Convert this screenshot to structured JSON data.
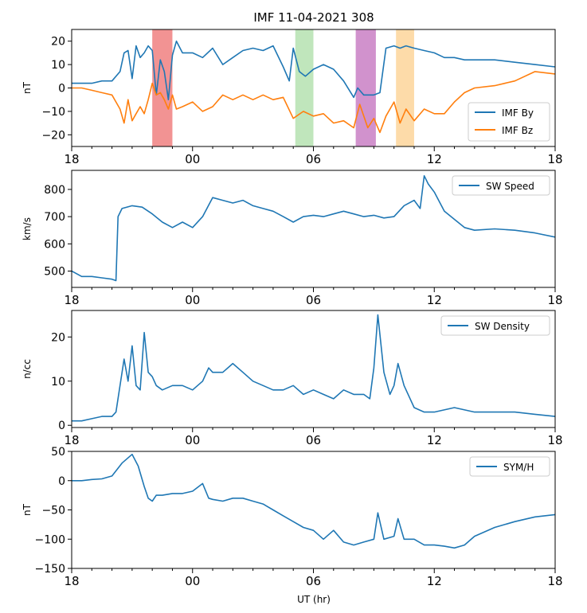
{
  "figure": {
    "title": "IMF  11-04-2021 308",
    "xlabel": "UT (hr)"
  },
  "colors": {
    "by": "#1f77b4",
    "bz": "#ff7f0e",
    "frame": "#000000"
  },
  "chart_data": [
    {
      "type": "line",
      "panel": "imf",
      "title": "IMF  11-04-2021 308",
      "ylabel": "nT",
      "xlim": [
        0,
        24
      ],
      "ylim": [
        -25,
        25
      ],
      "xticks": [
        0,
        6,
        12,
        18,
        24
      ],
      "xticklabels": [
        "18",
        "00",
        "06",
        "12",
        "18"
      ],
      "yticks": [
        -20,
        -10,
        0,
        10,
        20
      ],
      "yticklabels": [
        "−20",
        "−10",
        "0",
        "10",
        "20"
      ],
      "legend_position": "lower-right",
      "shaded_regions": [
        {
          "x0": 4.0,
          "x1": 5.0,
          "color": "#f08080"
        },
        {
          "x0": 11.1,
          "x1": 12.0,
          "color": "#b5e2b0"
        },
        {
          "x0": 14.1,
          "x1": 15.1,
          "color": "#c97fc4"
        },
        {
          "x0": 16.1,
          "x1": 17.0,
          "color": "#fdd59a"
        }
      ],
      "series": [
        {
          "name": "IMF By",
          "color": "#1f77b4",
          "x": [
            0,
            0.5,
            1,
            1.5,
            2,
            2.4,
            2.6,
            2.8,
            3,
            3.2,
            3.4,
            3.6,
            3.8,
            4,
            4.2,
            4.4,
            4.6,
            4.8,
            5,
            5.2,
            5.5,
            6,
            6.5,
            7,
            7.5,
            8,
            8.5,
            9,
            9.5,
            10,
            10.5,
            10.8,
            11,
            11.3,
            11.6,
            12,
            12.5,
            13,
            13.5,
            14,
            14.2,
            14.5,
            15,
            15.3,
            15.6,
            16,
            16.3,
            16.6,
            17,
            17.5,
            18,
            18.5,
            19,
            19.5,
            20,
            21,
            22,
            23,
            24
          ],
          "y": [
            2,
            2,
            2,
            3,
            3,
            7,
            15,
            16,
            4,
            18,
            13,
            15,
            18,
            16,
            -3,
            12,
            7,
            -5,
            14,
            20,
            15,
            15,
            13,
            17,
            10,
            13,
            16,
            17,
            16,
            18,
            9,
            3,
            17,
            7,
            5,
            8,
            10,
            8,
            3,
            -4,
            0,
            -3,
            -3,
            -2,
            17,
            18,
            17,
            18,
            17,
            16,
            15,
            13,
            13,
            12,
            12,
            12,
            11,
            10,
            9
          ]
        },
        {
          "name": "IMF Bz",
          "color": "#ff7f0e",
          "x": [
            0,
            0.5,
            1,
            1.5,
            2,
            2.4,
            2.6,
            2.8,
            3,
            3.2,
            3.4,
            3.6,
            3.8,
            4,
            4.2,
            4.4,
            4.6,
            4.8,
            5,
            5.2,
            5.5,
            6,
            6.5,
            7,
            7.5,
            8,
            8.5,
            9,
            9.5,
            10,
            10.5,
            11,
            11.5,
            12,
            12.5,
            13,
            13.5,
            14,
            14.3,
            14.7,
            15,
            15.3,
            15.6,
            16,
            16.3,
            16.6,
            17,
            17.5,
            18,
            18.5,
            19,
            19.5,
            20,
            21,
            22,
            23,
            24
          ],
          "y": [
            0,
            0,
            -1,
            -2,
            -3,
            -9,
            -15,
            -5,
            -14,
            -11,
            -8,
            -11,
            -5,
            2,
            -3,
            -2,
            -5,
            -9,
            -3,
            -9,
            -8,
            -6,
            -10,
            -8,
            -3,
            -5,
            -3,
            -5,
            -3,
            -5,
            -4,
            -13,
            -10,
            -12,
            -11,
            -15,
            -14,
            -17,
            -7,
            -17,
            -13,
            -19,
            -12,
            -6,
            -15,
            -9,
            -14,
            -9,
            -11,
            -11,
            -6,
            -2,
            0,
            1,
            3,
            7,
            6
          ]
        }
      ]
    },
    {
      "type": "line",
      "panel": "speed",
      "ylabel": "km/s",
      "xlim": [
        0,
        24
      ],
      "ylim": [
        440,
        870
      ],
      "xticks": [
        0,
        6,
        12,
        18,
        24
      ],
      "xticklabels": [
        "18",
        "00",
        "06",
        "12",
        "18"
      ],
      "yticks": [
        500,
        600,
        700,
        800
      ],
      "yticklabels": [
        "500",
        "600",
        "700",
        "800"
      ],
      "legend_position": "top-right",
      "series": [
        {
          "name": "SW Speed",
          "color": "#1f77b4",
          "x": [
            0,
            0.5,
            1,
            1.5,
            2,
            2.2,
            2.3,
            2.5,
            3,
            3.5,
            4,
            4.5,
            5,
            5.5,
            6,
            6.5,
            7,
            7.5,
            8,
            8.5,
            9,
            9.5,
            10,
            10.5,
            11,
            11.5,
            12,
            12.5,
            13,
            13.5,
            14,
            14.5,
            15,
            15.5,
            16,
            16.5,
            17,
            17.3,
            17.5,
            17.7,
            18,
            18.5,
            19,
            19.5,
            20,
            21,
            22,
            23,
            24
          ],
          "y": [
            500,
            480,
            480,
            475,
            470,
            465,
            700,
            730,
            740,
            735,
            710,
            680,
            660,
            680,
            660,
            700,
            770,
            760,
            750,
            760,
            740,
            730,
            720,
            700,
            680,
            700,
            705,
            700,
            710,
            720,
            710,
            700,
            705,
            695,
            700,
            740,
            760,
            730,
            850,
            820,
            790,
            720,
            690,
            660,
            650,
            655,
            650,
            640,
            625
          ]
        }
      ]
    },
    {
      "type": "line",
      "panel": "density",
      "ylabel": "n/cc",
      "xlim": [
        0,
        24
      ],
      "ylim": [
        -0.5,
        26
      ],
      "xticks": [
        0,
        6,
        12,
        18,
        24
      ],
      "xticklabels": [
        "18",
        "00",
        "06",
        "12",
        "18"
      ],
      "yticks": [
        0,
        10,
        20
      ],
      "yticklabels": [
        "0",
        "10",
        "20"
      ],
      "legend_position": "top-right",
      "series": [
        {
          "name": "SW Density",
          "color": "#1f77b4",
          "x": [
            0,
            0.5,
            1,
            1.5,
            2,
            2.2,
            2.4,
            2.6,
            2.8,
            3,
            3.2,
            3.4,
            3.6,
            3.8,
            4,
            4.2,
            4.5,
            5,
            5.5,
            6,
            6.5,
            6.8,
            7,
            7.5,
            8,
            8.5,
            9,
            9.5,
            10,
            10.5,
            11,
            11.5,
            12,
            12.5,
            13,
            13.5,
            14,
            14.5,
            14.8,
            15,
            15.2,
            15.5,
            15.8,
            16,
            16.2,
            16.5,
            17,
            17.5,
            18,
            19,
            20,
            21,
            22,
            23,
            24
          ],
          "y": [
            1,
            1,
            1.5,
            2,
            2,
            3,
            9,
            15,
            10,
            18,
            9,
            8,
            21,
            12,
            11,
            9,
            8,
            9,
            9,
            8,
            10,
            13,
            12,
            12,
            14,
            12,
            10,
            9,
            8,
            8,
            9,
            7,
            8,
            7,
            6,
            8,
            7,
            7,
            6,
            13,
            25,
            12,
            7,
            9,
            14,
            9,
            4,
            3,
            3,
            4,
            3,
            3,
            3,
            2.5,
            2
          ]
        }
      ]
    },
    {
      "type": "line",
      "panel": "symh",
      "ylabel": "nT",
      "xlabel": "UT (hr)",
      "xlim": [
        0,
        24
      ],
      "ylim": [
        -150,
        50
      ],
      "xticks": [
        0,
        6,
        12,
        18,
        24
      ],
      "xticklabels": [
        "18",
        "00",
        "06",
        "12",
        "18"
      ],
      "yticks": [
        -150,
        -100,
        -50,
        0,
        50
      ],
      "yticklabels": [
        "−150",
        "−100",
        "−50",
        "0",
        "50"
      ],
      "legend_position": "top-right",
      "series": [
        {
          "name": "SYM/H",
          "color": "#1f77b4",
          "x": [
            0,
            0.5,
            1,
            1.5,
            2,
            2.5,
            3,
            3.3,
            3.6,
            3.8,
            4,
            4.2,
            4.5,
            5,
            5.5,
            6,
            6.5,
            6.8,
            7,
            7.5,
            8,
            8.5,
            9,
            9.5,
            10,
            10.5,
            11,
            11.5,
            12,
            12.5,
            13,
            13.5,
            14,
            14.5,
            15,
            15.2,
            15.5,
            16,
            16.2,
            16.5,
            17,
            17.5,
            18,
            18.5,
            19,
            19.5,
            20,
            21,
            22,
            23,
            24
          ],
          "y": [
            0,
            0,
            2,
            3,
            8,
            30,
            45,
            25,
            -10,
            -30,
            -35,
            -25,
            -25,
            -22,
            -22,
            -18,
            -5,
            -30,
            -32,
            -35,
            -30,
            -30,
            -35,
            -40,
            -50,
            -60,
            -70,
            -80,
            -85,
            -100,
            -85,
            -105,
            -110,
            -105,
            -100,
            -55,
            -100,
            -95,
            -65,
            -100,
            -100,
            -110,
            -110,
            -112,
            -115,
            -110,
            -95,
            -80,
            -70,
            -62,
            -58
          ]
        }
      ]
    }
  ]
}
